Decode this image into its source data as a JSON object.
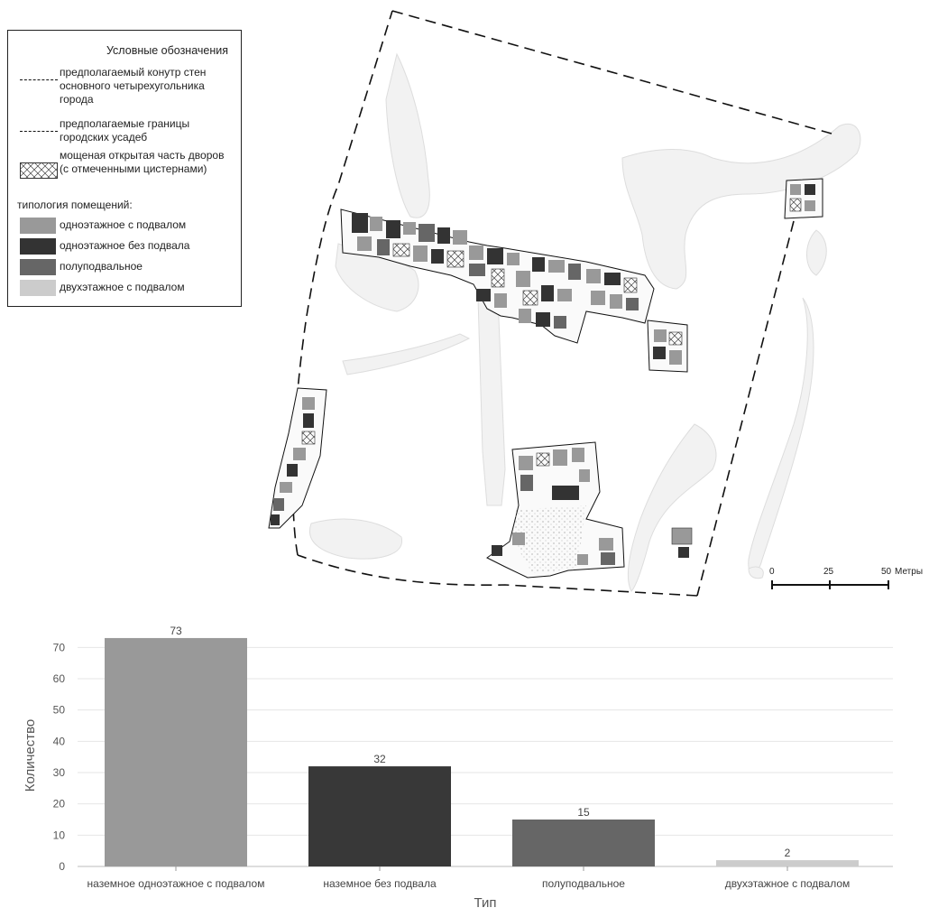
{
  "legend": {
    "title": "Условные обозначения",
    "items": {
      "wall_contour": "предполагаемый конутр стен основного четырехугольника города",
      "estate_borders": "предполагаемые границы городских усадеб",
      "paved_yard": "мощеная открытая часть дворов (с отмеченными цистернами)",
      "typology_header": "типология помещений:",
      "type1": "одноэтажное с подвалом",
      "type2": "одноэтажное без подвала",
      "type3": "полуподвальное",
      "type4": "двухэтажное с подвалом"
    },
    "colors": {
      "type1": "#999999",
      "type2": "#333333",
      "type3": "#666666",
      "type4": "#cccccc"
    }
  },
  "scalebar": {
    "ticks": [
      "0",
      "25",
      "50"
    ],
    "unit": "Метры"
  },
  "chart_data": {
    "type": "bar",
    "categories": [
      "наземное одноэтажное с подвалом",
      "наземное без подвала",
      "полуподвальное",
      "двухэтажное с подвалом"
    ],
    "values": [
      73,
      32,
      15,
      2
    ],
    "colors": [
      "#999999",
      "#383838",
      "#666666",
      "#cccccc"
    ],
    "xlabel": "Тип",
    "ylabel": "Количество",
    "ylim": [
      0,
      75
    ],
    "yticks": [
      0,
      10,
      20,
      30,
      40,
      50,
      60,
      70
    ],
    "grid": true
  }
}
